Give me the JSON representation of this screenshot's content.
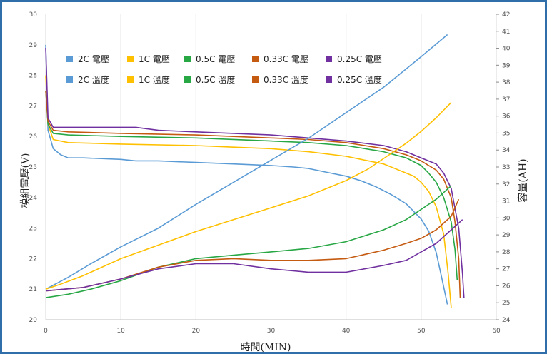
{
  "chart_data": {
    "type": "line",
    "xlabel": "時間(MIN)",
    "ylabel_left": "模組電壓(V)",
    "ylabel_right": "容量(AH)",
    "xlim": [
      0,
      60
    ],
    "xticks": [
      "0",
      "10",
      "20",
      "30",
      "40",
      "50",
      "60"
    ],
    "ylim_left": [
      20,
      30
    ],
    "yticks_left": [
      "20",
      "21",
      "22",
      "23",
      "24",
      "25",
      "26",
      "27",
      "28",
      "29",
      "30"
    ],
    "ylim_right": [
      24,
      42
    ],
    "yticks_right": [
      "24",
      "25",
      "26",
      "27",
      "28",
      "29",
      "30",
      "31",
      "32",
      "33",
      "34",
      "35",
      "36",
      "37",
      "38",
      "39",
      "40",
      "41",
      "42"
    ],
    "grid": "vertical",
    "legend_position": "top-center",
    "series": [
      {
        "name": "2C 電壓",
        "axis": "left",
        "color": "#5b9bd5",
        "x": [
          0,
          0.3,
          1,
          2,
          3,
          5,
          10,
          12,
          15,
          20,
          25,
          30,
          33,
          35,
          38,
          40,
          42,
          44,
          46,
          48,
          50,
          51,
          52,
          52.8,
          53.5
        ],
        "y": [
          29,
          26.2,
          25.6,
          25.4,
          25.3,
          25.3,
          25.25,
          25.2,
          25.2,
          25.15,
          25.1,
          25.05,
          25.0,
          24.95,
          24.8,
          24.7,
          24.55,
          24.35,
          24.1,
          23.8,
          23.3,
          22.9,
          22.2,
          21.3,
          20.5
        ]
      },
      {
        "name": "1C 電壓",
        "axis": "left",
        "color": "#ffc000",
        "x": [
          0,
          0.3,
          1,
          3,
          10,
          20,
          25,
          30,
          35,
          40,
          42,
          45,
          47,
          49,
          50,
          51,
          52,
          53,
          53.6,
          54
        ],
        "y": [
          28,
          26.4,
          25.9,
          25.8,
          25.75,
          25.7,
          25.65,
          25.6,
          25.5,
          25.35,
          25.25,
          25.1,
          24.9,
          24.7,
          24.5,
          24.2,
          23.7,
          22.8,
          21.5,
          20.4
        ]
      },
      {
        "name": "0.5C 電壓",
        "axis": "left",
        "color": "#28a745",
        "x": [
          0,
          0.3,
          1,
          3,
          10,
          20,
          30,
          35,
          40,
          45,
          48,
          50,
          51,
          52,
          53,
          54,
          54.5,
          54.8
        ],
        "y": [
          27.5,
          26.4,
          26.1,
          26.05,
          26.0,
          25.95,
          25.85,
          25.8,
          25.7,
          25.5,
          25.3,
          25.05,
          24.8,
          24.5,
          24.0,
          23.2,
          22.3,
          21.3
        ]
      },
      {
        "name": "0.33C 電壓",
        "axis": "left",
        "color": "#c55a11",
        "x": [
          0,
          0.3,
          1,
          3,
          10,
          20,
          30,
          35,
          40,
          45,
          48,
          50,
          52,
          53,
          54,
          54.5,
          55,
          55.2
        ],
        "y": [
          27.5,
          26.5,
          26.2,
          26.15,
          26.1,
          26.05,
          25.95,
          25.9,
          25.8,
          25.6,
          25.4,
          25.2,
          24.9,
          24.6,
          24.0,
          23.2,
          22.0,
          20.7
        ]
      },
      {
        "name": "0.25C 電壓",
        "axis": "left",
        "color": "#7030a0",
        "x": [
          0,
          0.3,
          1,
          3,
          12,
          15,
          20,
          30,
          35,
          40,
          45,
          48,
          50,
          52,
          53,
          54,
          55,
          55.5,
          55.7
        ],
        "y": [
          28.9,
          26.6,
          26.3,
          26.3,
          26.3,
          26.2,
          26.15,
          26.05,
          25.95,
          25.85,
          25.7,
          25.5,
          25.3,
          25.1,
          24.8,
          24.3,
          23.0,
          21.5,
          20.7
        ]
      },
      {
        "name": "2C 溫度",
        "axis": "right",
        "color": "#5b9bd5",
        "x": [
          0,
          3,
          6,
          10,
          15,
          20,
          25,
          30,
          35,
          40,
          45,
          50,
          53.5
        ],
        "y": [
          25.8,
          26.5,
          27.3,
          28.3,
          29.4,
          30.8,
          32.1,
          33.4,
          34.7,
          36.2,
          37.7,
          39.5,
          40.8
        ]
      },
      {
        "name": "1C 溫度",
        "axis": "right",
        "color": "#ffc000",
        "x": [
          0,
          2,
          5,
          10,
          15,
          20,
          25,
          30,
          35,
          40,
          43,
          46,
          48,
          50,
          52,
          54
        ],
        "y": [
          25.8,
          26.1,
          26.6,
          27.6,
          28.4,
          29.2,
          29.9,
          30.6,
          31.3,
          32.2,
          32.9,
          33.8,
          34.4,
          35.1,
          35.9,
          36.8
        ]
      },
      {
        "name": "0.5C 溫度",
        "axis": "right",
        "color": "#28a745",
        "x": [
          0,
          3,
          6,
          10,
          15,
          20,
          25,
          30,
          35,
          40,
          45,
          48,
          50,
          52,
          54
        ],
        "y": [
          25.3,
          25.5,
          25.8,
          26.3,
          27.1,
          27.6,
          27.8,
          28.0,
          28.2,
          28.6,
          29.3,
          29.9,
          30.5,
          31.1,
          31.9
        ]
      },
      {
        "name": "0.33C 溫度",
        "axis": "right",
        "color": "#c55a11",
        "x": [
          0,
          5,
          10,
          15,
          20,
          25,
          30,
          35,
          40,
          45,
          48,
          50,
          52,
          54,
          55
        ],
        "y": [
          25.7,
          25.9,
          26.4,
          27.1,
          27.5,
          27.6,
          27.5,
          27.5,
          27.6,
          28.1,
          28.5,
          28.8,
          29.3,
          30.1,
          31.1
        ]
      },
      {
        "name": "0.25C 溫度",
        "axis": "right",
        "color": "#7030a0",
        "x": [
          0,
          5,
          10,
          15,
          20,
          25,
          30,
          35,
          40,
          45,
          48,
          50,
          52,
          54,
          55.5
        ],
        "y": [
          25.7,
          25.9,
          26.4,
          27.0,
          27.3,
          27.3,
          27.0,
          26.8,
          26.8,
          27.2,
          27.5,
          28.0,
          28.5,
          29.3,
          29.9
        ]
      }
    ]
  }
}
